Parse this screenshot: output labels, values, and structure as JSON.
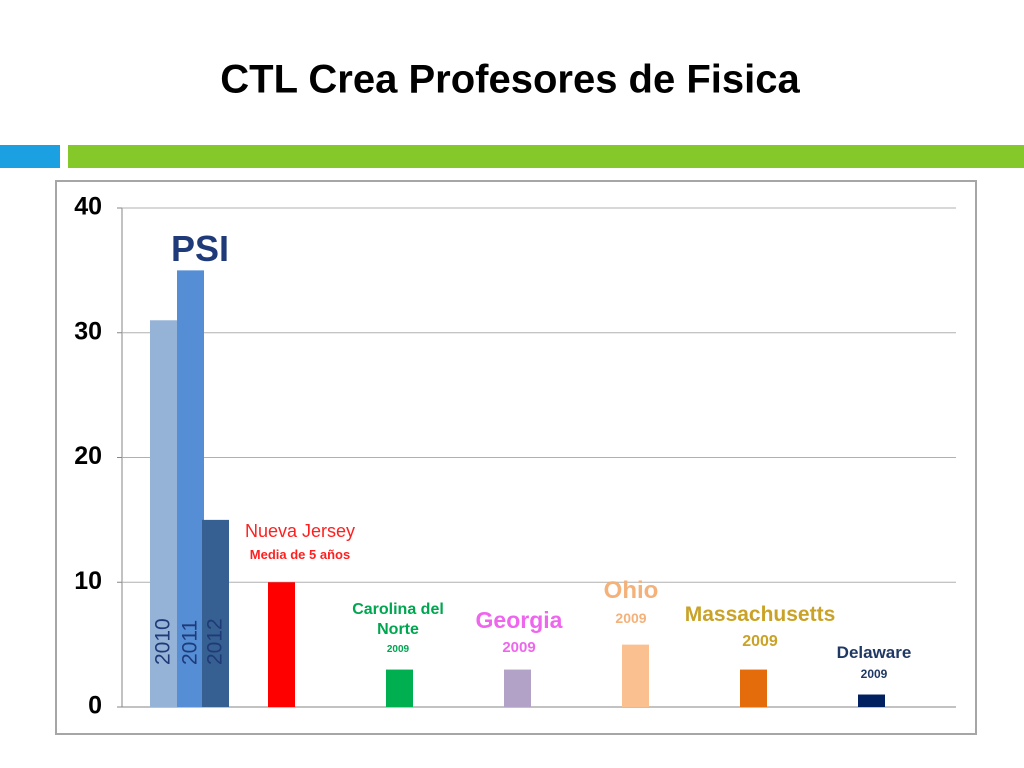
{
  "chart_data": {
    "type": "bar",
    "title": "CTL Crea Profesores de Fisica",
    "ylim": [
      0,
      40
    ],
    "yticks": [
      0,
      10,
      20,
      30,
      40
    ],
    "grid": true,
    "groups": [
      {
        "label": "PSI",
        "label_color": "#1f3a78",
        "bars": [
          {
            "label": "2010",
            "value": 31,
            "color": "#95b3d7"
          },
          {
            "label": "2011",
            "value": 35,
            "color": "#558ed5"
          },
          {
            "label": "2012",
            "value": 15,
            "color": "#366092"
          }
        ]
      },
      {
        "label": "Nueva Jersey",
        "note": "Media de 5 años",
        "label_color": "#ff1f1f",
        "bars": [
          {
            "value": 10,
            "color": "#ff0000"
          }
        ]
      },
      {
        "label": "Carolina del Norte",
        "note": "2009",
        "label_color": "#00a550",
        "bars": [
          {
            "value": 3,
            "color": "#00b050"
          }
        ]
      },
      {
        "label": "Georgia",
        "note": "2009",
        "label_color": "#ee66ee",
        "bars": [
          {
            "value": 3,
            "color": "#b3a2c7"
          }
        ]
      },
      {
        "label": "Ohio",
        "note": "2009",
        "label_color": "#f4b17a",
        "bars": [
          {
            "value": 5,
            "color": "#fac090"
          }
        ]
      },
      {
        "label": "Massachusetts",
        "note": "2009",
        "label_color": "#c9a227",
        "bars": [
          {
            "value": 3,
            "color": "#e46c0a"
          }
        ]
      },
      {
        "label": "Delaware",
        "note": "2009",
        "label_color": "#1f3864",
        "bars": [
          {
            "value": 1,
            "color": "#002060"
          }
        ]
      }
    ]
  }
}
